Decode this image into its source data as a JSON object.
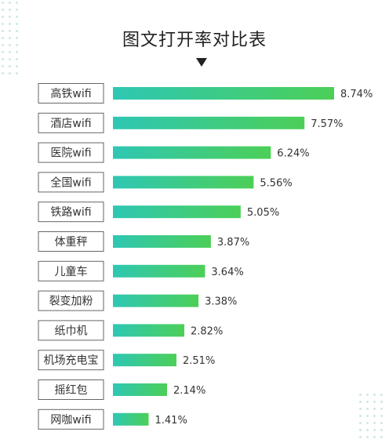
{
  "chart_data": {
    "type": "bar",
    "orientation": "horizontal",
    "title": "图文打开率对比表",
    "categories": [
      "高铁wifi",
      "酒店wifi",
      "医院wifi",
      "全国wifi",
      "铁路wifi",
      "体重秤",
      "儿童车",
      "裂变加粉",
      "纸巾机",
      "机场充电宝",
      "摇红包",
      "网咖wifi"
    ],
    "values": [
      8.74,
      7.57,
      6.24,
      5.56,
      5.05,
      3.87,
      3.64,
      3.38,
      2.82,
      2.51,
      2.14,
      1.41
    ],
    "value_labels": [
      "8.74%",
      "7.57%",
      "6.24%",
      "5.56%",
      "5.05%",
      "3.87%",
      "3.64%",
      "3.38%",
      "2.82%",
      "2.51%",
      "2.14%",
      "1.41%"
    ],
    "unit": "%",
    "xlim": [
      0,
      10
    ],
    "grid": false,
    "colors": {
      "bar_start": "#2ec7b4",
      "bar_end": "#4ccf57",
      "label_border": "#666666",
      "text": "#333333"
    }
  }
}
